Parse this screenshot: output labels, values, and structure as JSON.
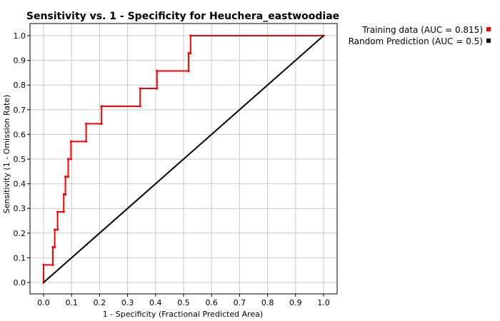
{
  "chart_data": {
    "type": "line",
    "title": "Sensitivity vs. 1 - Specificity for Heuchera_eastwoodiae",
    "xlabel": "1 - Specificity  (Fractional Predicted Area)",
    "ylabel": "Sensitivity  (1 - Omission Rate)",
    "xlim": [
      0,
      1
    ],
    "ylim": [
      0,
      1
    ],
    "xticks": [
      "0.0",
      "0.1",
      "0.2",
      "0.3",
      "0.4",
      "0.5",
      "0.6",
      "0.7",
      "0.8",
      "0.9",
      "1.0"
    ],
    "yticks": [
      "0.0",
      "0.1",
      "0.2",
      "0.3",
      "0.4",
      "0.5",
      "0.6",
      "0.7",
      "0.8",
      "0.9",
      "1.0"
    ],
    "grid": true,
    "legend_position": "top-right-outside",
    "series": [
      {
        "name": "Training data (AUC = 0.815)",
        "color": "#ff0000",
        "x": [
          0.0,
          0.0,
          0.033,
          0.033,
          0.04,
          0.04,
          0.05,
          0.05,
          0.072,
          0.072,
          0.078,
          0.078,
          0.088,
          0.088,
          0.098,
          0.098,
          0.152,
          0.152,
          0.207,
          0.207,
          0.345,
          0.345,
          0.405,
          0.405,
          0.518,
          0.518,
          0.525,
          0.525,
          1.0
        ],
        "y": [
          0.0,
          0.071,
          0.071,
          0.143,
          0.143,
          0.214,
          0.214,
          0.286,
          0.286,
          0.357,
          0.357,
          0.429,
          0.429,
          0.5,
          0.5,
          0.571,
          0.571,
          0.643,
          0.643,
          0.714,
          0.714,
          0.786,
          0.786,
          0.857,
          0.857,
          0.929,
          0.929,
          1.0,
          1.0
        ]
      },
      {
        "name": "Random Prediction (AUC = 0.5)",
        "color": "#000000",
        "x": [
          0.0,
          1.0
        ],
        "y": [
          0.0,
          1.0
        ]
      }
    ]
  }
}
